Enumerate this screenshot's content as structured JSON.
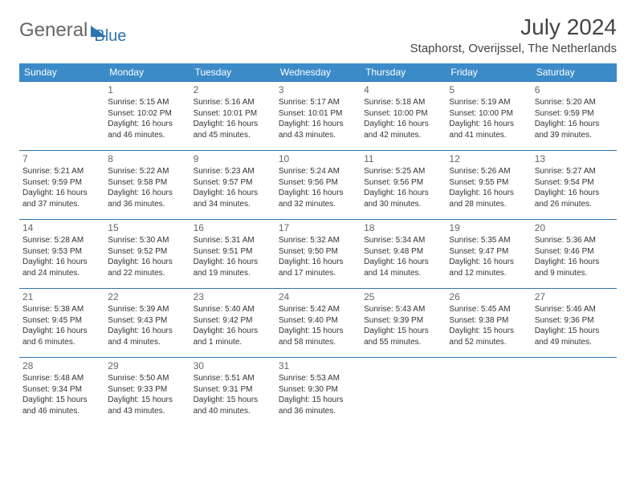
{
  "brand": {
    "part1": "General",
    "part2": "Blue"
  },
  "title": "July 2024",
  "location": "Staphorst, Overijssel, The Netherlands",
  "colors": {
    "header_bg": "#3b8bc9",
    "header_text": "#ffffff",
    "border": "#2e74b5",
    "text": "#333333",
    "daynum": "#666666"
  },
  "day_headers": [
    "Sunday",
    "Monday",
    "Tuesday",
    "Wednesday",
    "Thursday",
    "Friday",
    "Saturday"
  ],
  "weeks": [
    [
      null,
      {
        "n": "1",
        "sr": "5:15 AM",
        "ss": "10:02 PM",
        "dl": "16 hours and 46 minutes."
      },
      {
        "n": "2",
        "sr": "5:16 AM",
        "ss": "10:01 PM",
        "dl": "16 hours and 45 minutes."
      },
      {
        "n": "3",
        "sr": "5:17 AM",
        "ss": "10:01 PM",
        "dl": "16 hours and 43 minutes."
      },
      {
        "n": "4",
        "sr": "5:18 AM",
        "ss": "10:00 PM",
        "dl": "16 hours and 42 minutes."
      },
      {
        "n": "5",
        "sr": "5:19 AM",
        "ss": "10:00 PM",
        "dl": "16 hours and 41 minutes."
      },
      {
        "n": "6",
        "sr": "5:20 AM",
        "ss": "9:59 PM",
        "dl": "16 hours and 39 minutes."
      }
    ],
    [
      {
        "n": "7",
        "sr": "5:21 AM",
        "ss": "9:59 PM",
        "dl": "16 hours and 37 minutes."
      },
      {
        "n": "8",
        "sr": "5:22 AM",
        "ss": "9:58 PM",
        "dl": "16 hours and 36 minutes."
      },
      {
        "n": "9",
        "sr": "5:23 AM",
        "ss": "9:57 PM",
        "dl": "16 hours and 34 minutes."
      },
      {
        "n": "10",
        "sr": "5:24 AM",
        "ss": "9:56 PM",
        "dl": "16 hours and 32 minutes."
      },
      {
        "n": "11",
        "sr": "5:25 AM",
        "ss": "9:56 PM",
        "dl": "16 hours and 30 minutes."
      },
      {
        "n": "12",
        "sr": "5:26 AM",
        "ss": "9:55 PM",
        "dl": "16 hours and 28 minutes."
      },
      {
        "n": "13",
        "sr": "5:27 AM",
        "ss": "9:54 PM",
        "dl": "16 hours and 26 minutes."
      }
    ],
    [
      {
        "n": "14",
        "sr": "5:28 AM",
        "ss": "9:53 PM",
        "dl": "16 hours and 24 minutes."
      },
      {
        "n": "15",
        "sr": "5:30 AM",
        "ss": "9:52 PM",
        "dl": "16 hours and 22 minutes."
      },
      {
        "n": "16",
        "sr": "5:31 AM",
        "ss": "9:51 PM",
        "dl": "16 hours and 19 minutes."
      },
      {
        "n": "17",
        "sr": "5:32 AM",
        "ss": "9:50 PM",
        "dl": "16 hours and 17 minutes."
      },
      {
        "n": "18",
        "sr": "5:34 AM",
        "ss": "9:48 PM",
        "dl": "16 hours and 14 minutes."
      },
      {
        "n": "19",
        "sr": "5:35 AM",
        "ss": "9:47 PM",
        "dl": "16 hours and 12 minutes."
      },
      {
        "n": "20",
        "sr": "5:36 AM",
        "ss": "9:46 PM",
        "dl": "16 hours and 9 minutes."
      }
    ],
    [
      {
        "n": "21",
        "sr": "5:38 AM",
        "ss": "9:45 PM",
        "dl": "16 hours and 6 minutes."
      },
      {
        "n": "22",
        "sr": "5:39 AM",
        "ss": "9:43 PM",
        "dl": "16 hours and 4 minutes."
      },
      {
        "n": "23",
        "sr": "5:40 AM",
        "ss": "9:42 PM",
        "dl": "16 hours and 1 minute."
      },
      {
        "n": "24",
        "sr": "5:42 AM",
        "ss": "9:40 PM",
        "dl": "15 hours and 58 minutes."
      },
      {
        "n": "25",
        "sr": "5:43 AM",
        "ss": "9:39 PM",
        "dl": "15 hours and 55 minutes."
      },
      {
        "n": "26",
        "sr": "5:45 AM",
        "ss": "9:38 PM",
        "dl": "15 hours and 52 minutes."
      },
      {
        "n": "27",
        "sr": "5:46 AM",
        "ss": "9:36 PM",
        "dl": "15 hours and 49 minutes."
      }
    ],
    [
      {
        "n": "28",
        "sr": "5:48 AM",
        "ss": "9:34 PM",
        "dl": "15 hours and 46 minutes."
      },
      {
        "n": "29",
        "sr": "5:50 AM",
        "ss": "9:33 PM",
        "dl": "15 hours and 43 minutes."
      },
      {
        "n": "30",
        "sr": "5:51 AM",
        "ss": "9:31 PM",
        "dl": "15 hours and 40 minutes."
      },
      {
        "n": "31",
        "sr": "5:53 AM",
        "ss": "9:30 PM",
        "dl": "15 hours and 36 minutes."
      },
      null,
      null,
      null
    ]
  ],
  "labels": {
    "sunrise": "Sunrise: ",
    "sunset": "Sunset: ",
    "daylight": "Daylight: "
  }
}
